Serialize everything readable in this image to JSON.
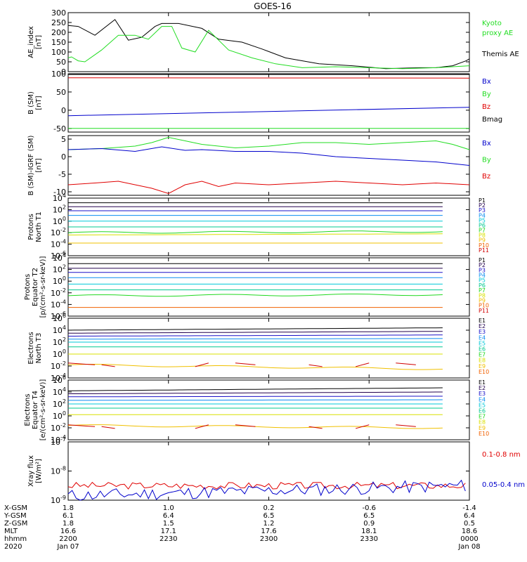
{
  "title": "GOES-16",
  "colors": {
    "axis": "#000000",
    "black": "#000000",
    "red": "#e00000",
    "green": "#22dd22",
    "blue": "#0000cc",
    "channels": [
      "#000000",
      "#22004e",
      "#1a10c8",
      "#0a8cf0",
      "#00c8d8",
      "#00c890",
      "#20d820",
      "#d8e000",
      "#f0c000",
      "#f06000",
      "#d00000",
      "#d00000"
    ]
  },
  "panels": [
    {
      "id": "ae",
      "ylabel": [
        "AE_index",
        "[nT]"
      ],
      "ticks": [
        "300",
        "250",
        "200",
        "150",
        "100",
        "50",
        "0"
      ],
      "legend": [
        {
          "text": "Kyoto",
          "color": "green"
        },
        {
          "text": "proxy AE",
          "color": "green"
        },
        {
          "text": "Themis AE",
          "color": "black"
        }
      ]
    },
    {
      "id": "bsm",
      "ylabel": [
        "B (SM)",
        "[nT]"
      ],
      "ticks": [
        "100",
        "50",
        "0",
        "-50"
      ],
      "legend": [
        {
          "text": "Bx",
          "color": "blue"
        },
        {
          "text": "By",
          "color": "green"
        },
        {
          "text": "Bz",
          "color": "red"
        },
        {
          "text": "Bmag",
          "color": "black"
        }
      ]
    },
    {
      "id": "bigrf",
      "ylabel": [
        "B (SM)-IGRF (SM)",
        "[nT]"
      ],
      "ticks": [
        "5",
        "0",
        "-5",
        "-10"
      ],
      "legend": [
        {
          "text": "Bx",
          "color": "blue"
        },
        {
          "text": "By",
          "color": "green"
        },
        {
          "text": "Bz",
          "color": "red"
        }
      ]
    },
    {
      "id": "pn",
      "ylabel": [
        "Protons",
        "North T1"
      ],
      "ticks": [
        "10",
        "10",
        "10",
        "10",
        "10",
        "10"
      ],
      "exps": [
        "4",
        "2",
        "0",
        "-2",
        "-4",
        "-6"
      ],
      "legend_channels": [
        "P1",
        "P2",
        "P3",
        "P4",
        "P5",
        "P6",
        "P7",
        "P8",
        "P9",
        "P10",
        "P11"
      ]
    },
    {
      "id": "pe",
      "ylabel": [
        "Protons",
        "Equator T2",
        "[p/(cm²-s-sr-keV)]"
      ],
      "ticks": [
        "10",
        "10",
        "10",
        "10",
        "10",
        "10"
      ],
      "exps": [
        "4",
        "2",
        "0",
        "-2",
        "-4",
        "-6"
      ],
      "legend_channels": [
        "P1",
        "P2",
        "P3",
        "P4",
        "P5",
        "P6",
        "P7",
        "P8",
        "P9",
        "P10",
        "P11"
      ]
    },
    {
      "id": "en",
      "ylabel": [
        "Electrons",
        "North T3"
      ],
      "ticks": [
        "10",
        "10",
        "10",
        "10",
        "10",
        "10",
        "10"
      ],
      "exps": [
        "6",
        "4",
        "2",
        "0",
        "-2",
        "-4"
      ],
      "legend_channels": [
        "E1",
        "E2",
        "E3",
        "E4",
        "E5",
        "E6",
        "E7",
        "E8",
        "E9",
        "E10"
      ]
    },
    {
      "id": "ee",
      "ylabel": [
        "Electrons",
        "Equator T4",
        "[e/(cm²-s-sr-keV)]"
      ],
      "ticks": [
        "10",
        "10",
        "10",
        "10",
        "10",
        "10",
        "10"
      ],
      "exps": [
        "6",
        "4",
        "2",
        "0",
        "-2",
        "-4"
      ],
      "legend_channels": [
        "E1",
        "E2",
        "E3",
        "E4",
        "E5",
        "E6",
        "E7",
        "E8",
        "E9",
        "E10"
      ]
    },
    {
      "id": "xray",
      "ylabel": [
        "Xray flux",
        "[W/m²]"
      ],
      "ticks": [
        "10",
        "10",
        "10"
      ],
      "exps": [
        "-7",
        "-8",
        "-9"
      ],
      "legend": [
        {
          "text": "0.1-0.8 nm",
          "color": "red"
        },
        {
          "text": "0.05-0.4 nm",
          "color": "blue"
        }
      ]
    }
  ],
  "bottom_axis": {
    "row_labels": [
      "X-GSM",
      "Y-GSM",
      "Z-GSM",
      "MLT",
      "hhmm",
      "2020"
    ],
    "columns": [
      [
        "1.8",
        "6.1",
        "1.8",
        "16.6",
        "2200",
        "Jan 07"
      ],
      [
        "1.0",
        "6.4",
        "1.5",
        "17.1",
        "2230",
        ""
      ],
      [
        "0.2",
        "6.5",
        "1.2",
        "17.6",
        "2300",
        ""
      ],
      [
        "-0.6",
        "6.5",
        "0.9",
        "18.1",
        "2330",
        ""
      ],
      [
        "-1.4",
        "6.4",
        "0.5",
        "18.6",
        "0000",
        "Jan 08"
      ]
    ]
  },
  "chart_data": {
    "type": "line",
    "title": "GOES-16",
    "x_ticks": [
      "2200",
      "2230",
      "2300",
      "2330",
      "0000"
    ],
    "x_range": [
      "2020-01-07 22:00",
      "2020-01-08 00:00"
    ],
    "panels": [
      {
        "name": "AE_index [nT]",
        "ylim": [
          0,
          300
        ],
        "series": [
          {
            "name": "Themis AE",
            "color": "black",
            "t": [
              0,
              3,
              8,
              14,
              18,
              22,
              26,
              28,
              33,
              40,
              45,
              52,
              58,
              65,
              75,
              85,
              95,
              105,
              110,
              115,
              119,
              120
            ],
            "y": [
              235,
              230,
              185,
              265,
              160,
              175,
              230,
              245,
              245,
              220,
              165,
              150,
              115,
              70,
              40,
              30,
              15,
              20,
              20,
              30,
              55,
              65
            ]
          },
          {
            "name": "Kyoto proxy AE",
            "color": "green",
            "t": [
              0,
              1,
              3,
              5,
              10,
              15,
              20,
              24,
              28,
              31,
              34,
              38,
              42,
              48,
              55,
              62,
              70,
              80,
              90,
              100,
              110,
              115,
              120
            ],
            "y": [
              70,
              75,
              55,
              50,
              110,
              185,
              185,
              165,
              230,
              230,
              120,
              100,
              210,
              110,
              70,
              40,
              20,
              25,
              20,
              15,
              20,
              25,
              30
            ]
          }
        ]
      },
      {
        "name": "B (SM) [nT]",
        "ylim": [
          -60,
          100
        ],
        "series": [
          {
            "name": "Bmag",
            "color": "black",
            "t": [
              0,
              120
            ],
            "y": [
              98,
              98
            ]
          },
          {
            "name": "Bz",
            "color": "red",
            "t": [
              0,
              120
            ],
            "y": [
              89,
              88
            ]
          },
          {
            "name": "Bx",
            "color": "blue",
            "t": [
              0,
              120
            ],
            "y": [
              -15,
              8
            ]
          },
          {
            "name": "By",
            "color": "green",
            "t": [
              0,
              120
            ],
            "y": [
              -50,
              -50
            ]
          }
        ]
      },
      {
        "name": "B (SM)-IGRF (SM) [nT]",
        "ylim": [
          -11,
          6
        ],
        "series": [
          {
            "name": "By",
            "color": "green",
            "t": [
              0,
              10,
              20,
              25,
              30,
              35,
              40,
              50,
              60,
              70,
              80,
              90,
              100,
              110,
              115,
              120
            ],
            "y": [
              2,
              2.3,
              3,
              4,
              5.5,
              4.5,
              3.5,
              2.5,
              3,
              4,
              4,
              3.5,
              4,
              4.5,
              3.5,
              2
            ]
          },
          {
            "name": "Bx",
            "color": "blue",
            "t": [
              0,
              10,
              20,
              28,
              35,
              40,
              50,
              60,
              70,
              80,
              90,
              100,
              110,
              120
            ],
            "y": [
              2,
              2.3,
              1.5,
              2.8,
              1.8,
              2,
              1.5,
              1.5,
              1,
              0,
              -0.5,
              -1,
              -1.5,
              -2.5
            ]
          },
          {
            "name": "Bz",
            "color": "red",
            "t": [
              0,
              8,
              15,
              20,
              25,
              30,
              35,
              40,
              45,
              50,
              60,
              70,
              80,
              90,
              100,
              110,
              120
            ],
            "y": [
              -8,
              -7.5,
              -7,
              -8,
              -9,
              -10.5,
              -8,
              -7,
              -8.5,
              -7.5,
              -8,
              -7.5,
              -7,
              -7.5,
              -8,
              -7.5,
              -8
            ]
          }
        ]
      },
      {
        "name": "Protons North T1 (log10)",
        "ylim": [
          -6,
          4
        ],
        "series": [
          {
            "name": "P1",
            "log_y": [
              3.2,
              3.2
            ]
          },
          {
            "name": "P2",
            "log_y": [
              2.5,
              2.5
            ]
          },
          {
            "name": "P3",
            "log_y": [
              1.8,
              1.8
            ]
          },
          {
            "name": "P4",
            "log_y": [
              1.0,
              1.0
            ]
          },
          {
            "name": "P5",
            "log_y": [
              0.0,
              0.0
            ]
          },
          {
            "name": "P6",
            "log_y": [
              -1.0,
              -1.0
            ]
          },
          {
            "name": "P7",
            "log_y": [
              -2.0,
              -1.8
            ]
          },
          {
            "name": "P8",
            "log_y": [
              -2.4,
              -2.2
            ]
          },
          {
            "name": "P9",
            "log_y": [
              -3.8,
              -3.8
            ]
          }
        ]
      },
      {
        "name": "Protons Equator T2 (log10)",
        "ylim": [
          -6,
          4
        ],
        "series": [
          {
            "name": "P1",
            "log_y": [
              3.0,
              3.0
            ]
          },
          {
            "name": "P2",
            "log_y": [
              2.2,
              2.2
            ]
          },
          {
            "name": "P3",
            "log_y": [
              1.5,
              1.5
            ]
          },
          {
            "name": "P4",
            "log_y": [
              0.6,
              0.6
            ]
          },
          {
            "name": "P5",
            "log_y": [
              -0.5,
              -0.5
            ]
          },
          {
            "name": "P6",
            "log_y": [
              -1.5,
              -1.5
            ]
          },
          {
            "name": "P7",
            "log_y": [
              -2.5,
              -2.3
            ]
          },
          {
            "name": "P10",
            "log_y": [
              -4.5,
              -4.5
            ]
          }
        ]
      },
      {
        "name": "Electrons North T3 (log10)",
        "ylim": [
          -4,
          6
        ],
        "series": [
          {
            "name": "E1",
            "log_y": [
              4.0,
              4.4
            ]
          },
          {
            "name": "E2",
            "log_y": [
              3.5,
              3.8
            ]
          },
          {
            "name": "E3",
            "log_y": [
              3.0,
              3.2
            ]
          },
          {
            "name": "E4",
            "log_y": [
              2.5,
              2.6
            ]
          },
          {
            "name": "E5",
            "log_y": [
              2.0,
              2.0
            ]
          },
          {
            "name": "E6",
            "log_y": [
              1.2,
              1.2
            ]
          },
          {
            "name": "E8",
            "log_y": [
              0.0,
              0.0
            ]
          },
          {
            "name": "E9",
            "log_y": [
              -1.8,
              -2.5
            ]
          }
        ]
      },
      {
        "name": "Electrons Equator T4 (log10)",
        "ylim": [
          -4,
          6
        ],
        "series": [
          {
            "name": "E1",
            "log_y": [
              4.2,
              4.7
            ]
          },
          {
            "name": "E2",
            "log_y": [
              3.7,
              4.0
            ]
          },
          {
            "name": "E3",
            "log_y": [
              3.2,
              3.3
            ]
          },
          {
            "name": "E4",
            "log_y": [
              2.6,
              2.7
            ]
          },
          {
            "name": "E5",
            "log_y": [
              2.0,
              2.0
            ]
          },
          {
            "name": "E6",
            "log_y": [
              1.3,
              1.3
            ]
          },
          {
            "name": "E8",
            "log_y": [
              0.2,
              0.2
            ]
          },
          {
            "name": "E9",
            "log_y": [
              -1.6,
              -2.0
            ]
          }
        ]
      },
      {
        "name": "Xray flux [W/m2] (log10)",
        "ylim": [
          -9,
          -7
        ],
        "series": [
          {
            "name": "0.1-0.8 nm",
            "color": "red",
            "log_y_mean": -8.5
          },
          {
            "name": "0.05-0.4 nm",
            "color": "blue",
            "log_y_mean": -8.85
          }
        ]
      }
    ]
  }
}
